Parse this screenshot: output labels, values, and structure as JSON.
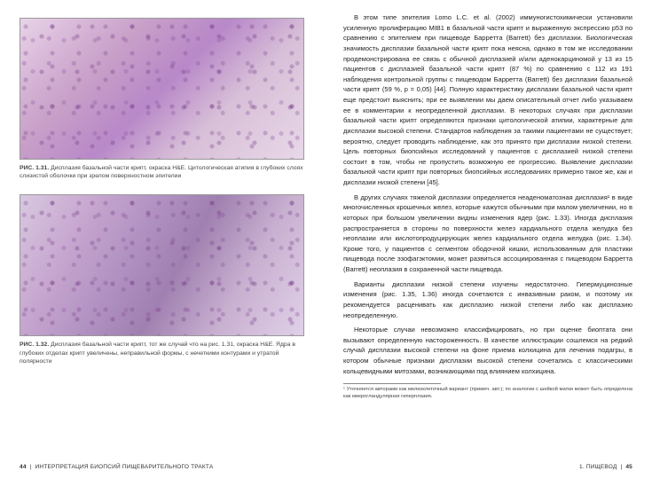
{
  "left": {
    "fig1": {
      "label": "РИС. 1.31.",
      "caption": "Дисплазия базальной части крипт, окраска H&E. Цитологическая атипия в глубоких слоях слизистой оболочки при зрелом поверхностном эпителии"
    },
    "fig2": {
      "label": "РИС. 1.32.",
      "caption": "Дисплазия базальной части крипт, тот же случай что на рис. 1.31, окраска H&E. Ядра в глубоких отделах крипт увеличены, неправильной формы, с нечеткими контурами и утратой полярности"
    },
    "page_num": "44",
    "footer": "ИНТЕРПРЕТАЦИЯ БИОПСИЙ ПИЩЕВАРИТЕЛЬНОГО ТРАКТА"
  },
  "right": {
    "para1": "В этом типе эпителия Lomo L.C. et al. (2002) иммуногистохимически установили усиленную пролиферацию MIB1 в базальной части крипт и выраженную экспрессию p53 по сравнению с эпителием при пищеводе Барретта (Barrett) без дисплазии. Биологическая значимость дисплазии базальной части крипт пока неясна, однако в том же исследовании продемонстрирована ее связь с обычной дисплазией и/или аденокарциномой у 13 из 15 пациентов с дисплазией базальной части крипт (87 %) по сравнению с 112 из 191 наблюдения контрольной группы с пищеводом Барретта (Barrett) без дисплазии базальной части крипт (59 %, p = 0,05) [44]. Полную характеристику дисплазии базальной части крипт еще предстоит выяснить; при ее выявлении мы даем описательный отчет либо указываем ее в комментарии к неопределенной дисплазии. В некоторых случаях при дисплазии базальной части крипт определяются признаки цитологической атипии, характерные для дисплазии высокой степени. Стандартов наблюдения за такими пациентами не существует; вероятно, следует проводить наблюдение, как это принято при дисплазии низкой степени. Цель повторных биопсийных исследований у пациентов с дисплазией низкой степени состоит в том, чтобы не пропустить возможную ее прогрессию. Выявление дисплазии базальной части крипт при повторных биопсийных исследованиях примерно такое же, как и дисплазии низкой степени [45].",
    "para2": "В других случаях тяжелой дисплазии определяется неаденоматозная дисплазия¹ в виде многочисленных крошечных желез, которые кажутся обычными при малом увеличении, но в которых при большом увеличении видны изменения ядер (рис. 1.33). Иногда дисплазия распространяется в стороны по поверхности желез кардиального отдела желудка без неоплазии или кислотопродуцирующих желез кардиального отдела желудка (рис. 1.34). Кроме того, у пациентов с сегментом ободочной кишки, использованным для пластики пищевода после эзофагэктомии, может развиться ассоциированная с пищеводом Барретта (Barrett) неоплазия в сохраненной части пищевода.",
    "para3": "Варианты дисплазии низкой степени изучены недостаточно. Гипермуцинозные изменения (рис. 1.35, 1.36) иногда сочетаются с инвазивным раком, и поэтому их рекомендуется расценивать как дисплазию низкой степени либо как дисплазию неопределенную.",
    "para4": "Некоторые случаи невозможно классифицировать, но при оценке биоптата они вызывают определенную настороженность. В качестве иллюстрации сошлемся на редкий случай дисплазии высокой степени на фоне приема колхицина для лечения подагры, в котором обычные признаки дисплазии высокой степени сочетались с классическими кольцевидными митозами, возникающими под влиянием колхицина.",
    "footnote": "¹ Уточняется авторами как мелкоклеточный вариант (примеч. авт.); по аналогии с шейкой матки может быть определена как микрогландулярная гиперплазия.",
    "page_num": "45",
    "footer": "1. ПИЩЕВОД"
  }
}
